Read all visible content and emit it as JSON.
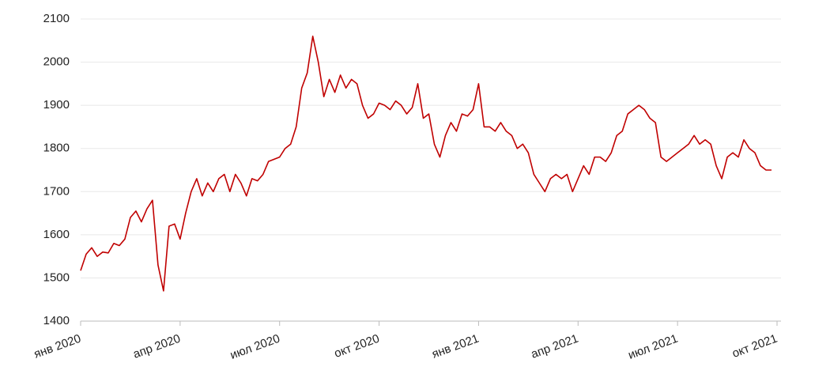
{
  "chart_data": {
    "type": "line",
    "categories": [
      "янв 2020",
      null,
      null,
      null,
      null,
      null,
      null,
      null,
      null,
      null,
      null,
      null,
      null,
      null,
      null,
      null,
      null,
      null,
      "апр 2020",
      null,
      null,
      null,
      null,
      null,
      null,
      null,
      null,
      null,
      null,
      null,
      null,
      null,
      null,
      null,
      null,
      null,
      "июл 2020",
      null,
      null,
      null,
      null,
      null,
      null,
      null,
      null,
      null,
      null,
      null,
      null,
      null,
      null,
      null,
      null,
      null,
      "окт 2020",
      null,
      null,
      null,
      null,
      null,
      null,
      null,
      null,
      null,
      null,
      null,
      null,
      null,
      null,
      null,
      null,
      null,
      "янв 2021",
      null,
      null,
      null,
      null,
      null,
      null,
      null,
      null,
      null,
      null,
      null,
      null,
      null,
      null,
      null,
      null,
      null,
      "апр 2021",
      null,
      null,
      null,
      null,
      null,
      null,
      null,
      null,
      null,
      null,
      null,
      null,
      null,
      null,
      null,
      null,
      null,
      "июл 2021",
      null,
      null,
      null,
      null,
      null,
      null,
      null,
      null,
      null,
      null,
      null,
      null,
      null,
      null,
      null,
      null,
      null,
      "окт 2021"
    ],
    "values": [
      1517,
      1555,
      1570,
      1550,
      1560,
      1558,
      1580,
      1575,
      1590,
      1640,
      1655,
      1630,
      1660,
      1680,
      1530,
      1470,
      1620,
      1625,
      1590,
      1650,
      1700,
      1730,
      1690,
      1720,
      1700,
      1730,
      1740,
      1700,
      1740,
      1720,
      1690,
      1730,
      1725,
      1740,
      1770,
      1775,
      1780,
      1800,
      1810,
      1850,
      1940,
      1975,
      2060,
      2000,
      1920,
      1960,
      1930,
      1970,
      1940,
      1960,
      1950,
      1900,
      1870,
      1880,
      1905,
      1900,
      1890,
      1910,
      1900,
      1880,
      1895,
      1950,
      1870,
      1880,
      1810,
      1780,
      1830,
      1860,
      1840,
      1880,
      1875,
      1890,
      1950,
      1850,
      1850,
      1840,
      1860,
      1840,
      1830,
      1800,
      1810,
      1790,
      1740,
      1720,
      1700,
      1730,
      1740,
      1730,
      1740,
      1700,
      1730,
      1760,
      1740,
      1780,
      1780,
      1770,
      1790,
      1830,
      1840,
      1880,
      1890,
      1900,
      1890,
      1870,
      1860,
      1780,
      1770,
      1780,
      1790,
      1800,
      1810,
      1830,
      1810,
      1820,
      1810,
      1760,
      1730,
      1780,
      1790,
      1780,
      1820,
      1800,
      1790,
      1760,
      1750,
      1750,
      null
    ],
    "color": "#c00000",
    "ylim": [
      1400,
      2100
    ],
    "yticks": [
      1400,
      1500,
      1600,
      1700,
      1800,
      1900,
      2000,
      2100
    ],
    "grid": true
  }
}
